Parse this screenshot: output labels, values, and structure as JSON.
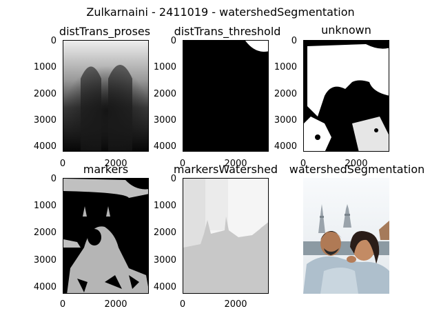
{
  "figure": {
    "suptitle": "Zulkarnaini - 2411019 - watershedSegmentation"
  },
  "panels": [
    {
      "title": "distTrans_proses",
      "yticks": [
        "0",
        "1000",
        "2000",
        "3000",
        "4000"
      ],
      "xticks": [
        "0",
        "2000"
      ],
      "image": "grayscale distance transform: bright top, dark bottom"
    },
    {
      "title": "distTrans_threshold",
      "yticks": [
        "0",
        "1000",
        "2000",
        "3000",
        "4000"
      ],
      "xticks": [
        "0",
        "2000"
      ],
      "image": "mostly black with white top-right corner"
    },
    {
      "title": "unknown",
      "yticks": [
        "0",
        "1000",
        "2000",
        "3000",
        "4000"
      ],
      "xticks": [
        "0",
        "2000"
      ],
      "image": "binary mask with white silhouettes"
    },
    {
      "title": "markers",
      "yticks": [
        "0",
        "1000",
        "2000",
        "3000",
        "4000"
      ],
      "xticks": [
        "0",
        "2000"
      ],
      "image": "black and gray marker map"
    },
    {
      "title": "markersWatershed",
      "yticks": [
        "0",
        "1000",
        "2000",
        "3000",
        "4000"
      ],
      "xticks": [
        "0",
        "2000"
      ],
      "image": "light gray segmented regions"
    },
    {
      "title": "watershedSegmentation",
      "image": "color photo of two people hugging with towers in background"
    }
  ],
  "colors": {
    "black": "#000000",
    "white": "#ffffff",
    "gray_mid": "#bdbdbd",
    "gray_light": "#d9d9d9",
    "sky": "#e9eef2"
  }
}
